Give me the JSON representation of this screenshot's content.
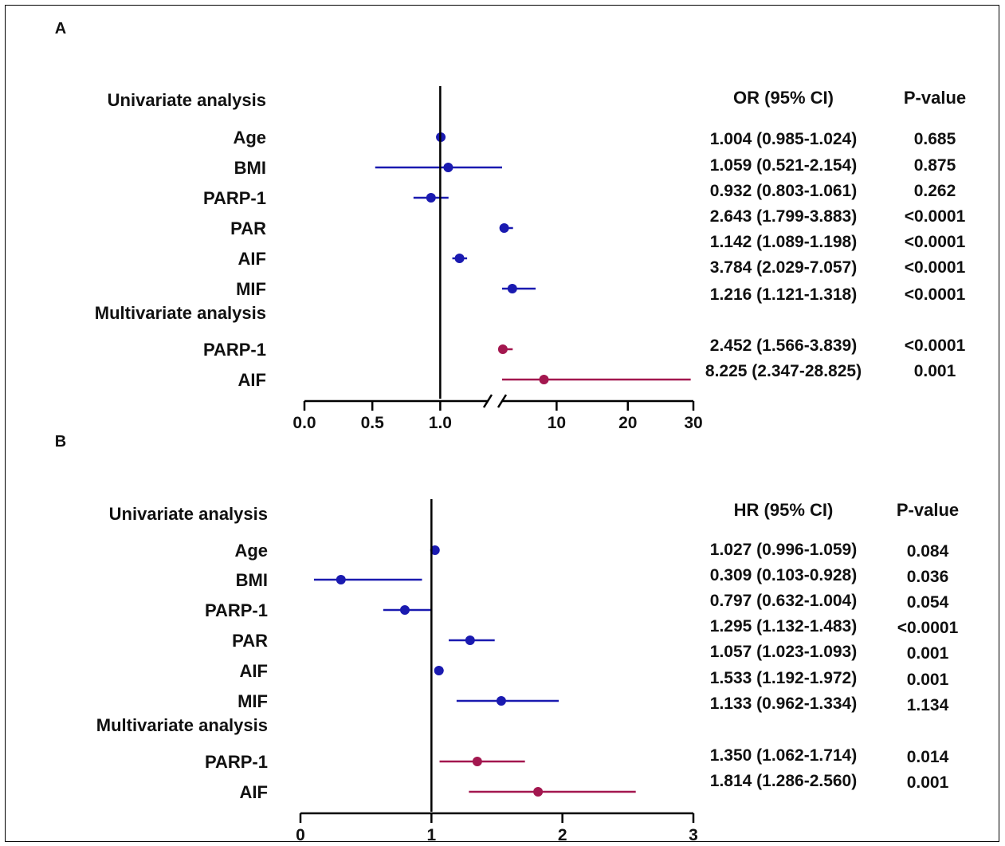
{
  "chart_data": [
    {
      "panel_label": "A",
      "type": "forest",
      "axis": {
        "broken": true,
        "ticks": [
          "0.0",
          "0.5",
          "1.0",
          "10",
          "20",
          "30"
        ],
        "reference": 1.0
      },
      "columns": {
        "estimate": "OR (95% CI)",
        "pvalue": "P-value"
      },
      "groups": [
        {
          "label": "Univariate analysis",
          "color": "#1a1ab0",
          "rows": [
            {
              "name": "Age",
              "or": 1.004,
              "lo": 0.985,
              "hi": 1.024,
              "ci_text": "1.004 (0.985-1.024)",
              "p": "0.685"
            },
            {
              "name": "BMI",
              "or": 1.059,
              "lo": 0.521,
              "hi": 2.154,
              "ci_text": "1.059 (0.521-2.154)",
              "p": "0.875"
            },
            {
              "name": "PARP-1",
              "or": 0.932,
              "lo": 0.803,
              "hi": 1.061,
              "ci_text": "0.932 (0.803-1.061)",
              "p": "0.262"
            },
            {
              "name": "PAR",
              "or": 2.643,
              "lo": 1.799,
              "hi": 3.883,
              "ci_text": "2.643 (1.799-3.883)",
              "p": "<0.0001"
            },
            {
              "name": "AIF",
              "or": 1.142,
              "lo": 1.089,
              "hi": 1.198,
              "ci_text": "1.142 (1.089-1.198)",
              "p": "<0.0001"
            },
            {
              "name": "MIF",
              "or": 3.784,
              "lo": 2.029,
              "hi": 7.057,
              "ci_text": "3.784 (2.029-7.057)",
              "p": "<0.0001"
            },
            {
              "name": "",
              "or": 1.216,
              "lo": 1.121,
              "hi": 1.318,
              "ci_text": "1.216 (1.121-1.318)",
              "p": "<0.0001"
            }
          ]
        },
        {
          "label": "Multivariate analysis",
          "color": "#a3174f",
          "rows": [
            {
              "name": "PARP-1",
              "or": 2.452,
              "lo": 1.566,
              "hi": 3.839,
              "ci_text": "2.452 (1.566-3.839)",
              "p": "<0.0001"
            },
            {
              "name": "AIF",
              "or": 8.225,
              "lo": 2.347,
              "hi": 28.825,
              "ci_text": "8.225 (2.347-28.825)",
              "p": "0.001"
            }
          ]
        }
      ]
    },
    {
      "panel_label": "B",
      "type": "forest",
      "axis": {
        "broken": false,
        "ticks": [
          "0",
          "1",
          "2",
          "3"
        ],
        "range": [
          0,
          3
        ],
        "reference": 1
      },
      "columns": {
        "estimate": "HR (95% CI)",
        "pvalue": "P-value"
      },
      "groups": [
        {
          "label": "Univariate analysis",
          "color": "#1a1ab0",
          "rows": [
            {
              "name": "Age",
              "hr": 1.027,
              "lo": 0.996,
              "hi": 1.059,
              "ci_text": "1.027 (0.996-1.059)",
              "p": "0.084"
            },
            {
              "name": "BMI",
              "hr": 0.309,
              "lo": 0.103,
              "hi": 0.928,
              "ci_text": "0.309 (0.103-0.928)",
              "p": "0.036"
            },
            {
              "name": "PARP-1",
              "hr": 0.797,
              "lo": 0.632,
              "hi": 1.004,
              "ci_text": "0.797 (0.632-1.004)",
              "p": "0.054"
            },
            {
              "name": "PAR",
              "hr": 1.295,
              "lo": 1.132,
              "hi": 1.483,
              "ci_text": "1.295 (1.132-1.483)",
              "p": "<0.0001"
            },
            {
              "name": "AIF",
              "hr": 1.057,
              "lo": 1.023,
              "hi": 1.093,
              "ci_text": "1.057 (1.023-1.093)",
              "p": "0.001"
            },
            {
              "name": "MIF",
              "hr": 1.533,
              "lo": 1.192,
              "hi": 1.972,
              "ci_text": "1.533 (1.192-1.972)",
              "p": "0.001"
            },
            {
              "name": "",
              "hr": 1.133,
              "lo": 0.962,
              "hi": 1.334,
              "ci_text": "1.133 (0.962-1.334)",
              "p": "1.134"
            }
          ]
        },
        {
          "label": "Multivariate analysis",
          "color": "#a3174f",
          "rows": [
            {
              "name": "PARP-1",
              "hr": 1.35,
              "lo": 1.062,
              "hi": 1.714,
              "ci_text": "1.350 (1.062-1.714)",
              "p": "0.014"
            },
            {
              "name": "AIF",
              "hr": 1.814,
              "lo": 1.286,
              "hi": 2.56,
              "ci_text": "1.814 (1.286-2.560)",
              "p": "0.001"
            }
          ]
        }
      ]
    }
  ]
}
